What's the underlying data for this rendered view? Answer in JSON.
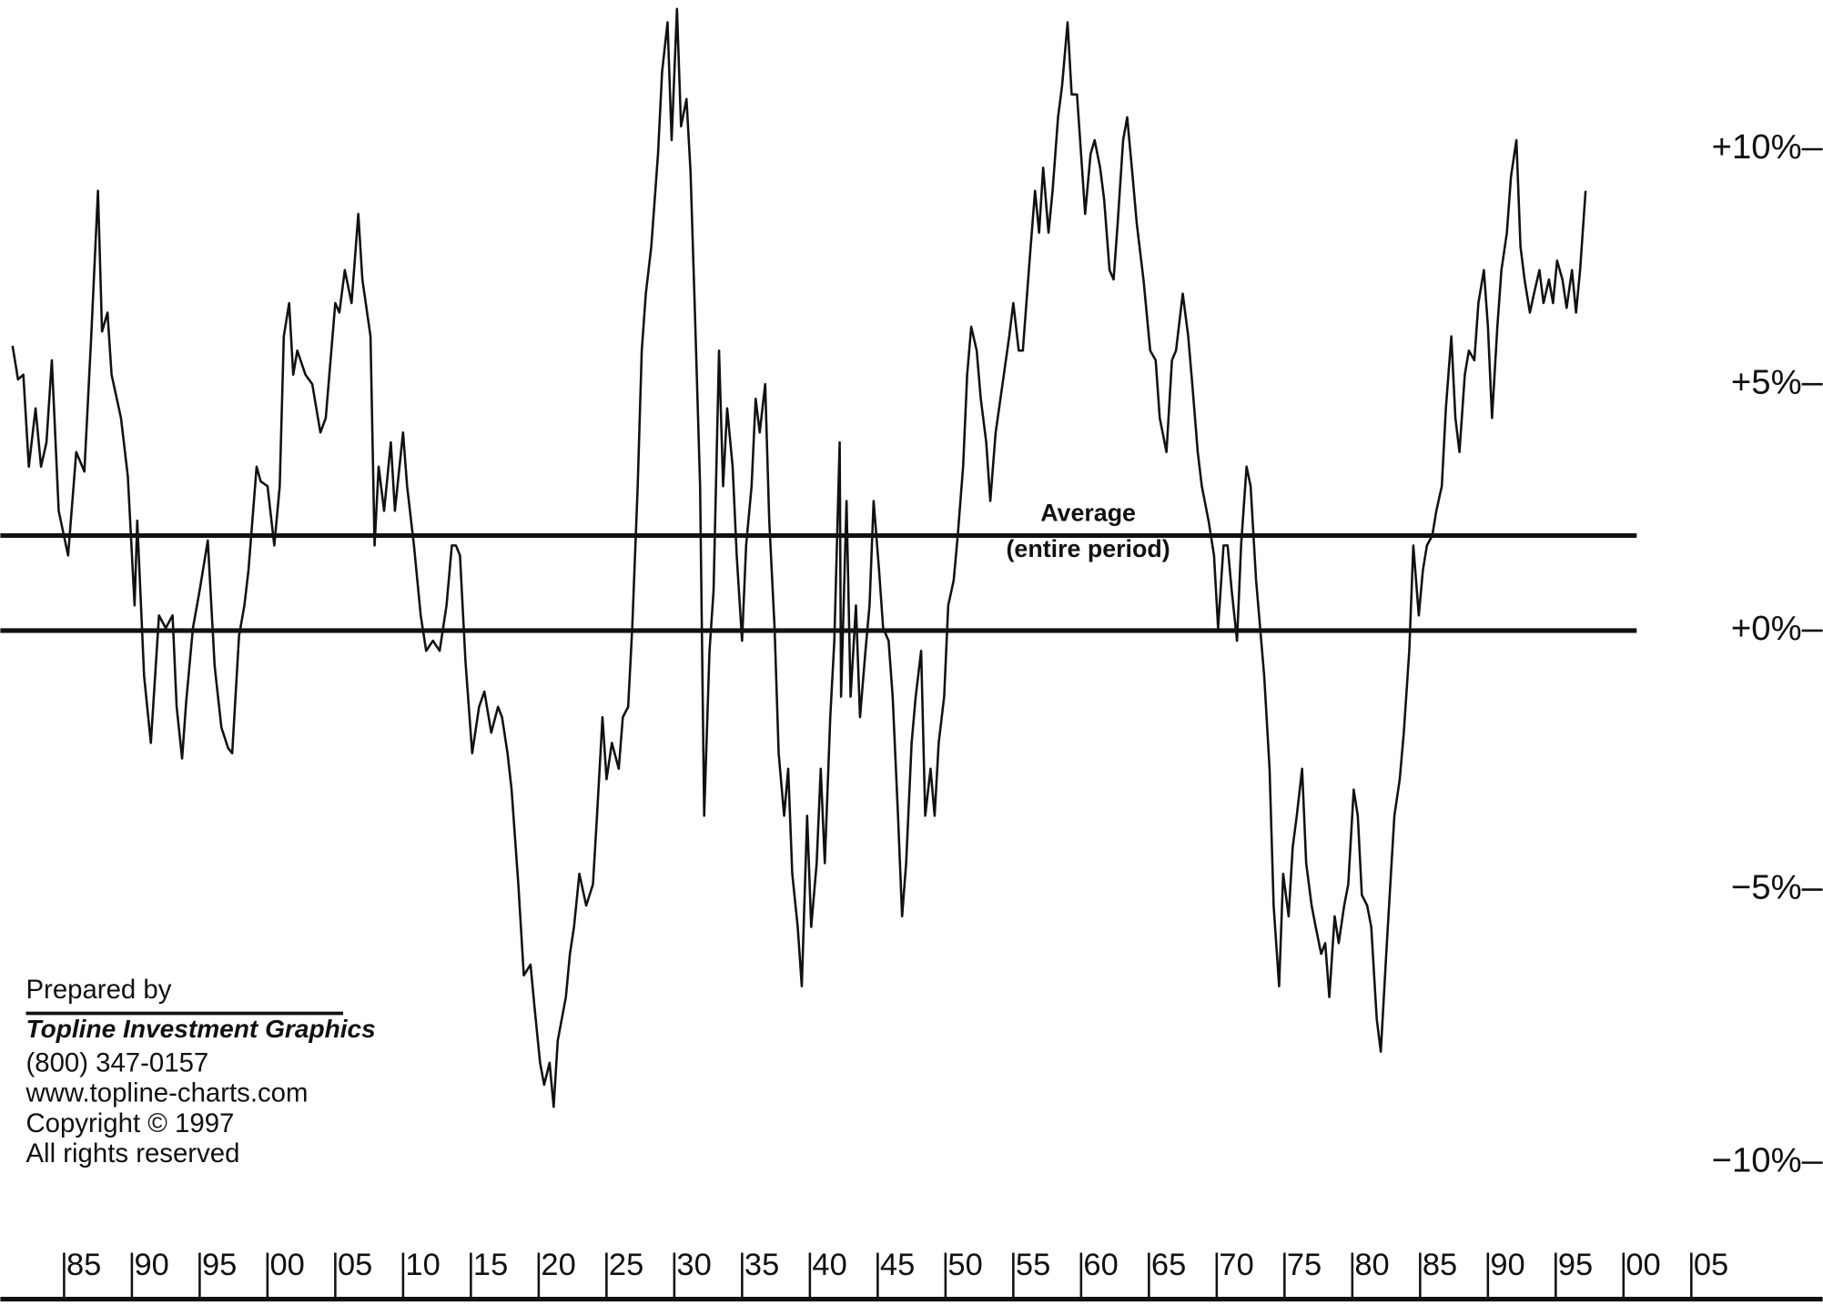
{
  "chart_data": {
    "type": "line",
    "y_scale": "log-growth",
    "x": [
      1881.2,
      1881.6,
      1882.0,
      1882.4,
      1882.9,
      1883.3,
      1883.7,
      1884.1,
      1884.6,
      1885.3,
      1885.9,
      1886.5,
      1887.0,
      1887.5,
      1887.8,
      1888.2,
      1888.5,
      1889.2,
      1889.7,
      1890.2,
      1890.4,
      1890.9,
      1891.4,
      1892.0,
      1892.5,
      1893.0,
      1893.3,
      1893.7,
      1894.0,
      1894.5,
      1895.0,
      1895.6,
      1896.1,
      1896.6,
      1897.1,
      1897.4,
      1897.9,
      1898.3,
      1898.6,
      1899.2,
      1899.5,
      1900.0,
      1900.5,
      1900.9,
      1901.2,
      1901.6,
      1901.9,
      1902.2,
      1902.8,
      1903.3,
      1903.9,
      1904.3,
      1905.0,
      1905.3,
      1905.7,
      1906.2,
      1906.7,
      1907.0,
      1907.6,
      1907.9,
      1908.2,
      1908.6,
      1909.1,
      1909.4,
      1910.0,
      1910.3,
      1910.8,
      1911.3,
      1911.7,
      1912.2,
      1912.7,
      1913.2,
      1913.6,
      1913.9,
      1914.2,
      1914.6,
      1915.1,
      1915.6,
      1916.0,
      1916.5,
      1917.0,
      1917.3,
      1917.7,
      1918.0,
      1918.5,
      1918.9,
      1919.4,
      1919.7,
      1920.1,
      1920.4,
      1920.8,
      1921.1,
      1921.4,
      1922.0,
      1922.3,
      1922.6,
      1923.0,
      1923.5,
      1924.0,
      1924.3,
      1924.7,
      1925.0,
      1925.4,
      1925.9,
      1926.2,
      1926.6,
      1926.9,
      1927.3,
      1927.6,
      1927.9,
      1928.3,
      1928.8,
      1929.1,
      1929.5,
      1929.8,
      1930.2,
      1930.5,
      1930.9,
      1931.2,
      1931.5,
      1931.9,
      1932.2,
      1932.6,
      1932.9,
      1933.3,
      1933.6,
      1933.9,
      1934.3,
      1934.6,
      1935.0,
      1935.3,
      1935.7,
      1936.0,
      1936.3,
      1936.7,
      1937.0,
      1937.4,
      1937.7,
      1938.1,
      1938.4,
      1938.7,
      1939.1,
      1939.4,
      1939.8,
      1940.1,
      1940.5,
      1940.8,
      1941.1,
      1941.5,
      1941.8,
      1942.2,
      1942.3,
      1942.7,
      1943.0,
      1943.4,
      1943.7,
      1944.1,
      1944.4,
      1944.7,
      1945.1,
      1945.4,
      1945.8,
      1946.1,
      1946.5,
      1946.8,
      1947.1,
      1947.5,
      1947.8,
      1948.2,
      1948.5,
      1948.9,
      1949.2,
      1949.5,
      1949.9,
      1950.2,
      1950.6,
      1950.9,
      1951.3,
      1951.6,
      1951.9,
      1952.3,
      1952.6,
      1953.0,
      1953.3,
      1953.7,
      1954.2,
      1954.7,
      1955.0,
      1955.4,
      1955.7,
      1956.2,
      1956.6,
      1956.9,
      1957.2,
      1957.6,
      1957.9,
      1958.3,
      1958.6,
      1959.0,
      1959.3,
      1959.7,
      1960.0,
      1960.3,
      1960.7,
      1961.0,
      1961.4,
      1961.7,
      1962.1,
      1962.4,
      1962.7,
      1963.1,
      1963.4,
      1963.8,
      1964.1,
      1964.6,
      1965.1,
      1965.5,
      1965.8,
      1966.3,
      1966.7,
      1967.0,
      1967.5,
      1967.9,
      1968.2,
      1968.6,
      1968.9,
      1969.4,
      1969.8,
      1970.1,
      1970.5,
      1970.8,
      1971.1,
      1971.5,
      1971.8,
      1972.2,
      1972.5,
      1972.9,
      1973.2,
      1973.5,
      1973.9,
      1974.2,
      1974.6,
      1974.9,
      1975.3,
      1975.6,
      1975.9,
      1976.3,
      1976.6,
      1977.0,
      1977.3,
      1977.7,
      1978.0,
      1978.3,
      1978.7,
      1979.0,
      1979.4,
      1979.7,
      1980.1,
      1980.4,
      1980.7,
      1981.1,
      1981.4,
      1981.8,
      1982.1,
      1982.5,
      1982.8,
      1983.1,
      1983.5,
      1983.8,
      1984.2,
      1984.5,
      1984.9,
      1985.2,
      1985.5,
      1985.9,
      1986.2,
      1986.6,
      1986.9,
      1987.3,
      1987.6,
      1987.9,
      1988.3,
      1988.6,
      1989.0,
      1989.3,
      1989.7,
      1990.0,
      1990.3,
      1990.7,
      1991.0,
      1991.4,
      1991.7,
      1992.1,
      1992.4,
      1992.7,
      1993.1,
      1993.4,
      1993.8,
      1994.1,
      1994.5,
      1994.8,
      1995.1,
      1995.5,
      1995.8,
      1996.2,
      1996.5,
      1996.8,
      1997.2
    ],
    "series": [
      {
        "color": "#111111",
        "values": [
          5.8,
          5.1,
          5.2,
          3.3,
          4.5,
          3.3,
          3.8,
          5.5,
          2.4,
          1.5,
          3.6,
          3.2,
          6.0,
          9.1,
          6.1,
          6.5,
          5.2,
          4.3,
          3.1,
          0.5,
          2.2,
          -0.9,
          -2.2,
          0.3,
          0.05,
          0.3,
          -1.5,
          -2.5,
          -1.4,
          0.05,
          0.8,
          1.8,
          -0.7,
          -1.9,
          -2.3,
          -2.4,
          -0.1,
          0.5,
          1.2,
          3.3,
          3.0,
          2.9,
          1.7,
          2.9,
          6.0,
          6.7,
          5.2,
          5.7,
          5.2,
          5.0,
          4.0,
          4.3,
          6.7,
          6.5,
          7.4,
          6.7,
          8.6,
          7.2,
          6.0,
          1.7,
          3.3,
          2.4,
          3.8,
          2.4,
          4.0,
          2.9,
          1.7,
          0.3,
          -0.4,
          -0.2,
          -0.4,
          0.5,
          1.7,
          1.7,
          1.5,
          -0.6,
          -2.4,
          -1.5,
          -1.2,
          -2.0,
          -1.5,
          -1.7,
          -2.4,
          -3.1,
          -4.9,
          -6.6,
          -6.4,
          -7.2,
          -8.2,
          -8.6,
          -8.2,
          -9.0,
          -7.8,
          -7.0,
          -6.2,
          -5.7,
          -4.7,
          -5.3,
          -4.9,
          -3.6,
          -1.7,
          -2.9,
          -2.2,
          -2.7,
          -1.7,
          -1.5,
          0.05,
          2.9,
          5.7,
          6.9,
          7.9,
          9.9,
          11.7,
          12.8,
          10.2,
          13.1,
          10.5,
          11.1,
          9.5,
          6.7,
          2.9,
          -3.6,
          -0.4,
          0.8,
          5.7,
          2.9,
          4.5,
          3.3,
          1.5,
          -0.2,
          1.7,
          2.9,
          4.7,
          4.0,
          5.0,
          2.2,
          0.05,
          -2.4,
          -3.6,
          -2.7,
          -4.7,
          -5.7,
          -6.8,
          -3.6,
          -5.7,
          -4.5,
          -2.7,
          -4.5,
          -1.7,
          -0.2,
          3.8,
          -1.3,
          2.6,
          -1.3,
          0.5,
          -1.7,
          -0.4,
          0.5,
          2.6,
          1.2,
          0.05,
          -0.2,
          -1.3,
          -3.6,
          -5.5,
          -4.5,
          -2.2,
          -1.3,
          -0.4,
          -3.6,
          -2.7,
          -3.6,
          -2.2,
          -1.3,
          0.5,
          1.0,
          1.9,
          3.3,
          5.2,
          6.2,
          5.7,
          4.7,
          3.8,
          2.6,
          4.0,
          5.0,
          6.0,
          6.7,
          5.7,
          5.7,
          7.6,
          9.1,
          8.2,
          9.6,
          8.2,
          9.1,
          10.7,
          11.4,
          12.8,
          11.2,
          11.2,
          9.9,
          8.6,
          9.9,
          10.2,
          9.6,
          8.9,
          7.4,
          7.2,
          8.4,
          10.2,
          10.7,
          9.4,
          8.4,
          7.2,
          5.7,
          5.5,
          4.3,
          3.6,
          5.5,
          5.7,
          6.9,
          6.0,
          5.0,
          3.6,
          2.9,
          2.2,
          1.5,
          0.05,
          1.7,
          1.7,
          0.8,
          -0.2,
          1.7,
          3.3,
          2.9,
          1.0,
          0.05,
          -0.9,
          -2.7,
          -5.3,
          -6.8,
          -4.7,
          -5.5,
          -4.2,
          -3.6,
          -2.7,
          -4.5,
          -5.3,
          -5.7,
          -6.2,
          -6.0,
          -7.0,
          -5.5,
          -6.0,
          -5.3,
          -4.9,
          -3.1,
          -3.6,
          -5.1,
          -5.3,
          -5.7,
          -7.4,
          -8.0,
          -6.2,
          -4.9,
          -3.6,
          -2.9,
          -2.0,
          -0.4,
          1.7,
          0.3,
          1.2,
          1.7,
          1.9,
          2.4,
          2.9,
          4.5,
          6.0,
          4.3,
          3.6,
          5.2,
          5.7,
          5.5,
          6.7,
          7.4,
          6.2,
          4.3,
          6.2,
          7.4,
          8.2,
          9.4,
          10.2,
          7.9,
          7.2,
          6.5,
          6.9,
          7.4,
          6.7,
          7.2,
          6.7,
          7.6,
          7.2,
          6.6,
          7.4,
          6.5,
          7.4,
          9.1
        ]
      }
    ],
    "xlim": [
      1880.3,
      2008.6
    ],
    "xticks": [
      {
        "value": 1885,
        "label": "85"
      },
      {
        "value": 1890,
        "label": "90"
      },
      {
        "value": 1895,
        "label": "95"
      },
      {
        "value": 1900,
        "label": "00"
      },
      {
        "value": 1905,
        "label": "05"
      },
      {
        "value": 1910,
        "label": "10"
      },
      {
        "value": 1915,
        "label": "15"
      },
      {
        "value": 1920,
        "label": "20"
      },
      {
        "value": 1925,
        "label": "25"
      },
      {
        "value": 1930,
        "label": "30"
      },
      {
        "value": 1935,
        "label": "35"
      },
      {
        "value": 1940,
        "label": "40"
      },
      {
        "value": 1945,
        "label": "45"
      },
      {
        "value": 1950,
        "label": "50"
      },
      {
        "value": 1955,
        "label": "55"
      },
      {
        "value": 1960,
        "label": "60"
      },
      {
        "value": 1965,
        "label": "65"
      },
      {
        "value": 1970,
        "label": "70"
      },
      {
        "value": 1975,
        "label": "75"
      },
      {
        "value": 1980,
        "label": "80"
      },
      {
        "value": 1985,
        "label": "85"
      },
      {
        "value": 1990,
        "label": "90"
      },
      {
        "value": 1995,
        "label": "95"
      },
      {
        "value": 2000,
        "label": "00"
      },
      {
        "value": 2005,
        "label": "05"
      }
    ],
    "ylim": [
      -12.4,
      13.3
    ],
    "yticks": [
      {
        "value": 10,
        "label": "+10%"
      },
      {
        "value": 5,
        "label": "+5%"
      },
      {
        "value": 0,
        "label": "+0%"
      },
      {
        "value": -5,
        "label": "−5%"
      },
      {
        "value": -10,
        "label": "−10%"
      }
    ],
    "reference_lines": [
      {
        "value": 1.9,
        "label": [
          "Average",
          "(entire period)"
        ]
      },
      {
        "value": 0
      }
    ],
    "credits": [
      "Prepared by",
      "Topline Investment Graphics",
      "(800) 347-0157",
      "www.topline-charts.com",
      "Copyright © 1997",
      "All rights reserved"
    ]
  }
}
